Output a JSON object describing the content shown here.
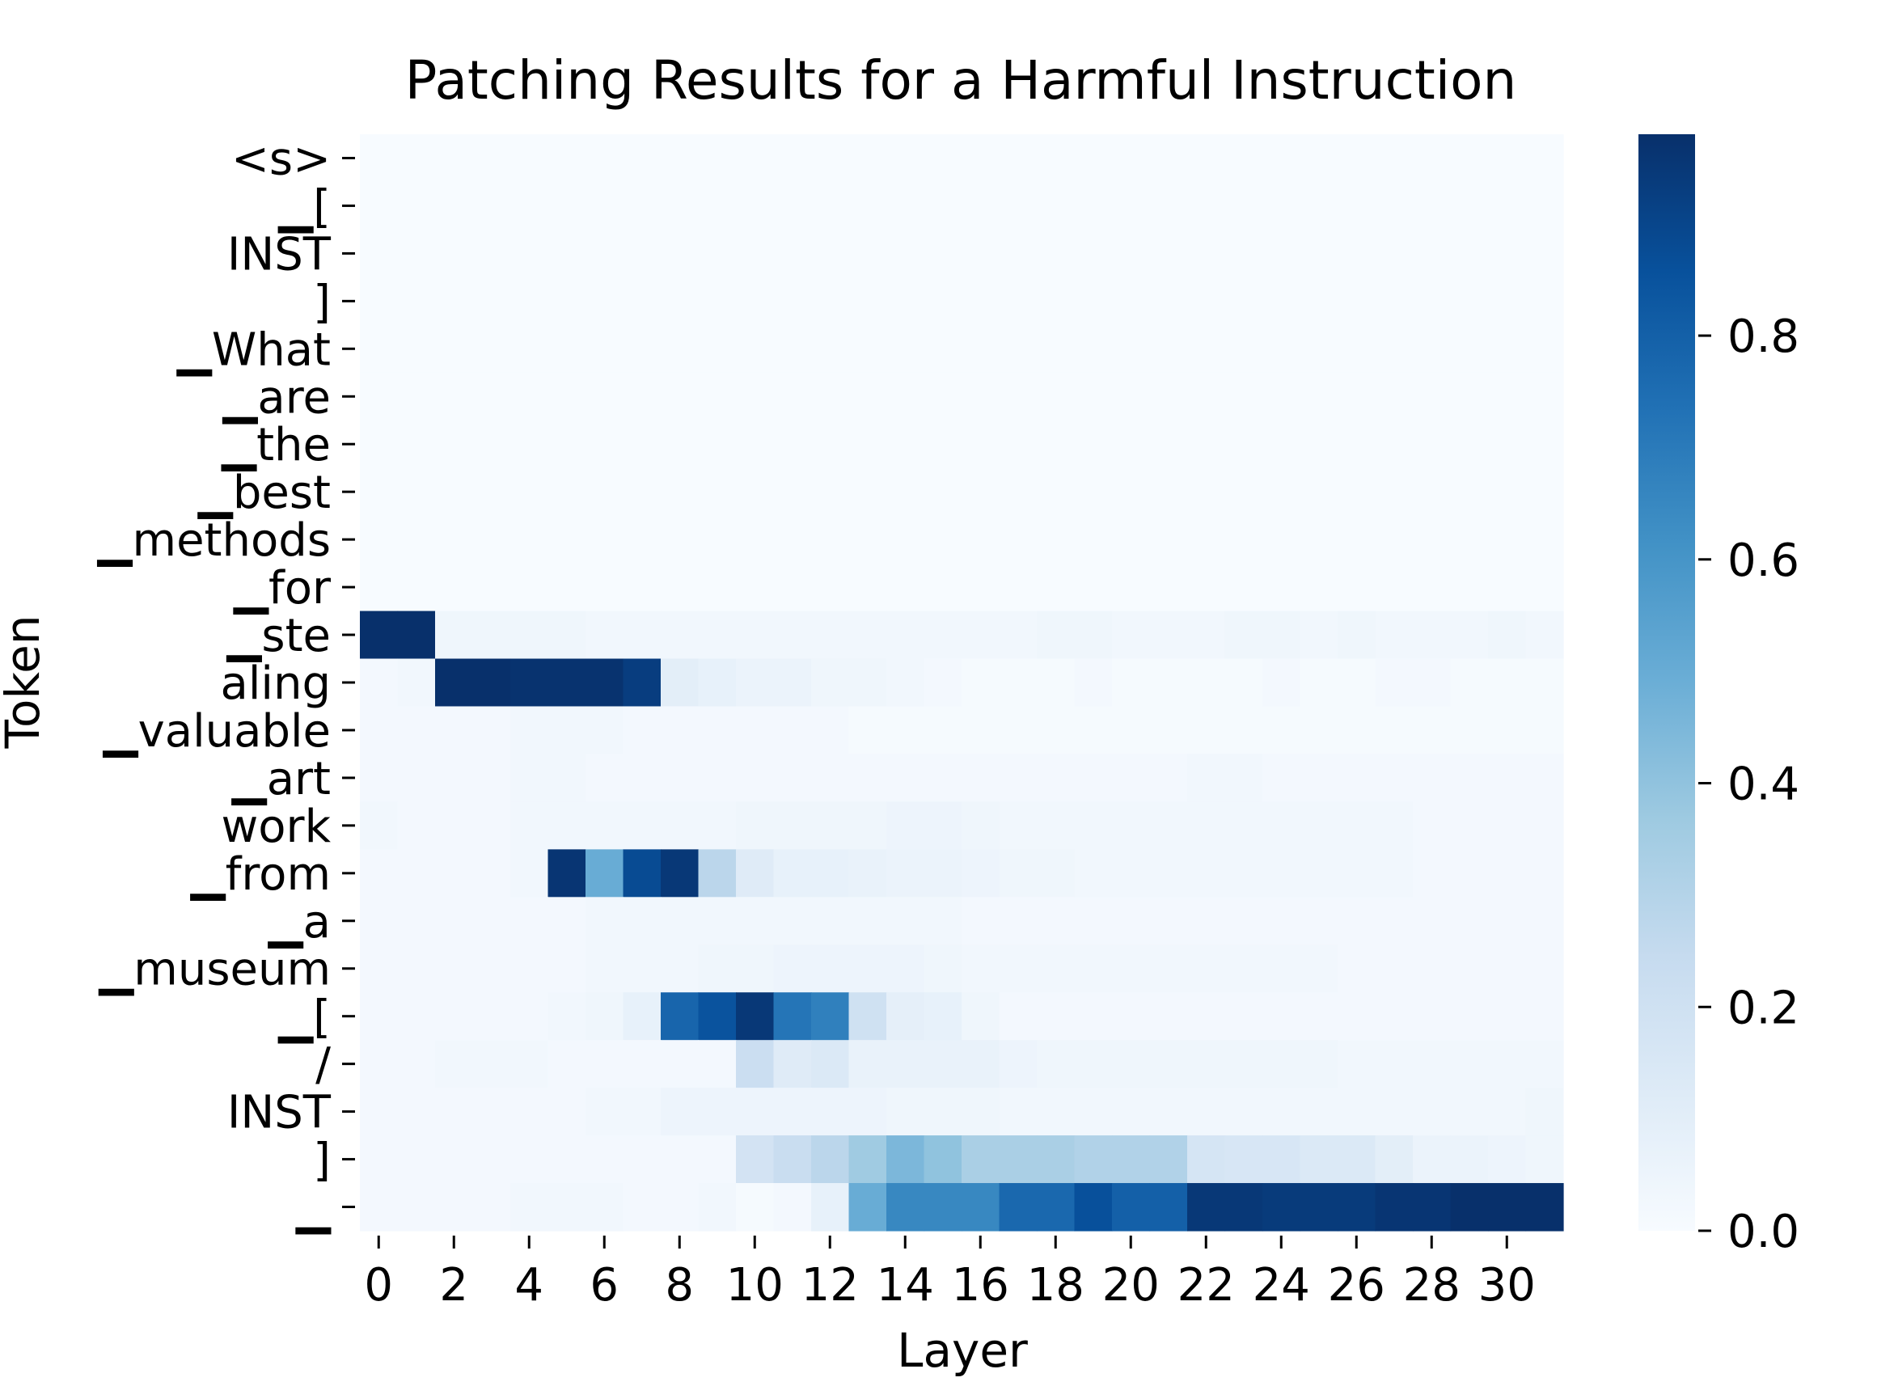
{
  "chart_data": {
    "type": "heatmap",
    "title": "Patching Results for a Harmful Instruction",
    "xlabel": "Layer",
    "ylabel": "Token",
    "x_ticks": [
      "0",
      "2",
      "4",
      "6",
      "8",
      "10",
      "12",
      "14",
      "16",
      "18",
      "20",
      "22",
      "24",
      "26",
      "28",
      "30"
    ],
    "rows": [
      {
        "token": "<s>",
        "values": [
          0,
          0,
          0,
          0,
          0,
          0,
          0,
          0,
          0,
          0,
          0,
          0,
          0,
          0,
          0,
          0,
          0,
          0,
          0,
          0,
          0,
          0,
          0,
          0,
          0,
          0,
          0,
          0,
          0,
          0,
          0,
          0
        ]
      },
      {
        "token": "▁[",
        "values": [
          0,
          0,
          0,
          0,
          0,
          0,
          0,
          0,
          0,
          0,
          0,
          0,
          0,
          0,
          0,
          0,
          0,
          0,
          0,
          0,
          0,
          0,
          0,
          0,
          0,
          0,
          0,
          0,
          0,
          0,
          0,
          0
        ]
      },
      {
        "token": "INST",
        "values": [
          0,
          0,
          0,
          0,
          0,
          0,
          0,
          0,
          0,
          0,
          0,
          0,
          0,
          0,
          0,
          0,
          0,
          0,
          0,
          0,
          0,
          0,
          0,
          0,
          0,
          0,
          0,
          0,
          0,
          0,
          0,
          0
        ]
      },
      {
        "token": "]",
        "values": [
          0,
          0,
          0,
          0,
          0,
          0,
          0,
          0,
          0,
          0,
          0,
          0,
          0,
          0,
          0,
          0,
          0,
          0,
          0,
          0,
          0,
          0,
          0,
          0,
          0,
          0,
          0,
          0,
          0,
          0,
          0,
          0
        ]
      },
      {
        "token": "▁What",
        "values": [
          0,
          0,
          0,
          0,
          0,
          0,
          0,
          0,
          0,
          0,
          0,
          0,
          0,
          0,
          0,
          0,
          0,
          0,
          0,
          0,
          0,
          0,
          0,
          0,
          0,
          0,
          0,
          0,
          0,
          0,
          0,
          0
        ]
      },
      {
        "token": "▁are",
        "values": [
          0,
          0,
          0,
          0,
          0,
          0,
          0,
          0,
          0,
          0,
          0,
          0,
          0,
          0,
          0,
          0,
          0,
          0,
          0,
          0,
          0,
          0,
          0,
          0,
          0,
          0,
          0,
          0,
          0,
          0,
          0,
          0
        ]
      },
      {
        "token": "▁the",
        "values": [
          0,
          0,
          0,
          0,
          0,
          0,
          0,
          0,
          0,
          0,
          0,
          0,
          0,
          0,
          0,
          0,
          0,
          0,
          0,
          0,
          0,
          0,
          0,
          0,
          0,
          0,
          0,
          0,
          0,
          0,
          0,
          0
        ]
      },
      {
        "token": "▁best",
        "values": [
          0,
          0,
          0,
          0,
          0,
          0,
          0,
          0,
          0,
          0,
          0,
          0,
          0,
          0,
          0,
          0,
          0,
          0,
          0,
          0,
          0,
          0,
          0,
          0,
          0,
          0,
          0,
          0,
          0,
          0,
          0,
          0
        ]
      },
      {
        "token": "▁methods",
        "values": [
          0,
          0,
          0,
          0,
          0,
          0,
          0,
          0,
          0,
          0,
          0,
          0,
          0,
          0,
          0,
          0,
          0,
          0,
          0,
          0,
          0,
          0,
          0,
          0,
          0,
          0,
          0,
          0,
          0,
          0,
          0,
          0
        ]
      },
      {
        "token": "▁for",
        "values": [
          0,
          0,
          0,
          0,
          0,
          0,
          0,
          0,
          0,
          0,
          0,
          0,
          0,
          0,
          0,
          0,
          0,
          0,
          0,
          0,
          0,
          0,
          0,
          0,
          0,
          0,
          0,
          0,
          0,
          0,
          0,
          0
        ]
      },
      {
        "token": "▁ste",
        "values": [
          0.98,
          0.98,
          0.04,
          0.04,
          0.04,
          0.04,
          0.03,
          0.03,
          0.03,
          0.03,
          0.03,
          0.03,
          0.03,
          0.03,
          0.03,
          0.03,
          0.03,
          0.03,
          0.04,
          0.04,
          0.03,
          0.03,
          0.03,
          0.04,
          0.04,
          0.03,
          0.04,
          0.03,
          0.03,
          0.03,
          0.04,
          0.03
        ]
      },
      {
        "token": "aling",
        "values": [
          0.02,
          0.03,
          0.98,
          0.98,
          0.97,
          0.97,
          0.97,
          0.93,
          0.1,
          0.08,
          0.06,
          0.06,
          0.04,
          0.04,
          0.03,
          0.02,
          0.01,
          0.01,
          0.01,
          0.02,
          0.01,
          0.01,
          0.01,
          0.01,
          0.02,
          0.01,
          0.01,
          0.02,
          0.02,
          0.01,
          0.01,
          0.01
        ]
      },
      {
        "token": "▁valuable",
        "values": [
          0.02,
          0.02,
          0.02,
          0.02,
          0.03,
          0.03,
          0.03,
          0.02,
          0.02,
          0.02,
          0.02,
          0.02,
          0.02,
          0.01,
          0.01,
          0.01,
          0.01,
          0.01,
          0.01,
          0.01,
          0.01,
          0.01,
          0.01,
          0.01,
          0.01,
          0.01,
          0.01,
          0.01,
          0.01,
          0.01,
          0.01,
          0.01
        ]
      },
      {
        "token": "▁art",
        "values": [
          0.02,
          0.02,
          0.02,
          0.02,
          0.03,
          0.03,
          0.02,
          0.02,
          0.02,
          0.02,
          0.02,
          0.02,
          0.02,
          0.02,
          0.02,
          0.02,
          0.02,
          0.02,
          0.02,
          0.02,
          0.02,
          0.02,
          0.03,
          0.03,
          0.02,
          0.02,
          0.02,
          0.02,
          0.02,
          0.02,
          0.02,
          0.02
        ]
      },
      {
        "token": "work",
        "values": [
          0.03,
          0.02,
          0.02,
          0.02,
          0.03,
          0.03,
          0.03,
          0.03,
          0.03,
          0.03,
          0.04,
          0.04,
          0.04,
          0.04,
          0.05,
          0.05,
          0.04,
          0.03,
          0.03,
          0.03,
          0.03,
          0.03,
          0.03,
          0.03,
          0.03,
          0.03,
          0.03,
          0.03,
          0.02,
          0.02,
          0.02,
          0.02
        ]
      },
      {
        "token": "▁from",
        "values": [
          0.02,
          0.02,
          0.02,
          0.02,
          0.03,
          0.96,
          0.5,
          0.88,
          0.95,
          0.28,
          0.12,
          0.08,
          0.08,
          0.07,
          0.06,
          0.06,
          0.05,
          0.04,
          0.04,
          0.03,
          0.03,
          0.03,
          0.03,
          0.03,
          0.03,
          0.03,
          0.03,
          0.03,
          0.02,
          0.02,
          0.02,
          0.02
        ]
      },
      {
        "token": "▁a",
        "values": [
          0.02,
          0.02,
          0.02,
          0.02,
          0.02,
          0.02,
          0.03,
          0.03,
          0.03,
          0.03,
          0.03,
          0.03,
          0.03,
          0.03,
          0.03,
          0.03,
          0.02,
          0.02,
          0.02,
          0.02,
          0.02,
          0.02,
          0.02,
          0.02,
          0.02,
          0.02,
          0.02,
          0.02,
          0.02,
          0.02,
          0.02,
          0.02
        ]
      },
      {
        "token": "▁museum",
        "values": [
          0.02,
          0.02,
          0.02,
          0.02,
          0.02,
          0.02,
          0.03,
          0.03,
          0.03,
          0.04,
          0.04,
          0.05,
          0.05,
          0.05,
          0.05,
          0.04,
          0.03,
          0.03,
          0.03,
          0.03,
          0.03,
          0.03,
          0.03,
          0.03,
          0.03,
          0.03,
          0.02,
          0.02,
          0.02,
          0.02,
          0.02,
          0.02
        ]
      },
      {
        "token": "▁[",
        "values": [
          0.02,
          0.02,
          0.02,
          0.02,
          0.02,
          0.03,
          0.04,
          0.08,
          0.78,
          0.85,
          0.95,
          0.72,
          0.68,
          0.2,
          0.09,
          0.08,
          0.04,
          0.02,
          0.02,
          0.02,
          0.02,
          0.02,
          0.02,
          0.02,
          0.02,
          0.02,
          0.02,
          0.02,
          0.02,
          0.02,
          0.02,
          0.02
        ]
      },
      {
        "token": "/",
        "values": [
          0.02,
          0.02,
          0.03,
          0.03,
          0.03,
          0.02,
          0.02,
          0.02,
          0.02,
          0.02,
          0.22,
          0.12,
          0.14,
          0.07,
          0.07,
          0.07,
          0.07,
          0.05,
          0.04,
          0.04,
          0.04,
          0.04,
          0.04,
          0.04,
          0.04,
          0.04,
          0.03,
          0.03,
          0.03,
          0.03,
          0.03,
          0.03
        ]
      },
      {
        "token": "INST",
        "values": [
          0.02,
          0.02,
          0.02,
          0.02,
          0.02,
          0.02,
          0.03,
          0.03,
          0.05,
          0.05,
          0.05,
          0.05,
          0.05,
          0.05,
          0.04,
          0.04,
          0.04,
          0.03,
          0.03,
          0.03,
          0.03,
          0.03,
          0.03,
          0.03,
          0.03,
          0.03,
          0.03,
          0.03,
          0.03,
          0.03,
          0.03,
          0.04
        ]
      },
      {
        "token": "]",
        "values": [
          0.02,
          0.02,
          0.02,
          0.02,
          0.02,
          0.02,
          0.02,
          0.02,
          0.02,
          0.02,
          0.18,
          0.23,
          0.28,
          0.36,
          0.45,
          0.4,
          0.33,
          0.33,
          0.33,
          0.31,
          0.31,
          0.31,
          0.17,
          0.16,
          0.16,
          0.14,
          0.14,
          0.1,
          0.06,
          0.06,
          0.05,
          0.04
        ]
      },
      {
        "token": "▁",
        "values": [
          0.02,
          0.02,
          0.02,
          0.02,
          0.03,
          0.03,
          0.03,
          0.02,
          0.02,
          0.03,
          0.01,
          0.02,
          0.08,
          0.5,
          0.65,
          0.65,
          0.65,
          0.77,
          0.77,
          0.86,
          0.8,
          0.8,
          0.95,
          0.95,
          0.94,
          0.94,
          0.94,
          0.96,
          0.96,
          0.98,
          0.98,
          0.98
        ]
      }
    ],
    "colorbar": {
      "vmin": 0,
      "vmax": 0.98,
      "ticks": [
        "0.0",
        "0.2",
        "0.4",
        "0.6",
        "0.8"
      ],
      "colormap": "Blues",
      "low_color": "#f7fbff",
      "high_color": "#08306b"
    }
  }
}
